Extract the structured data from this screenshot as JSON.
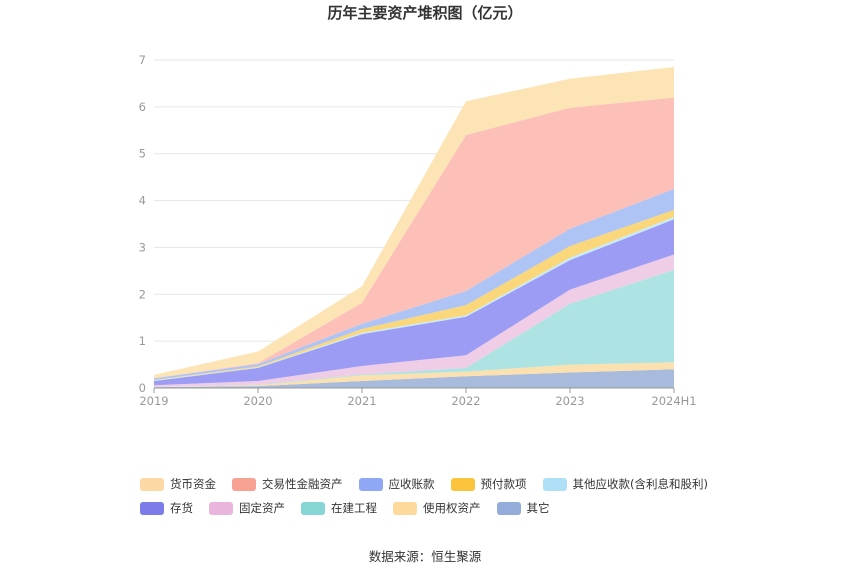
{
  "chart_data": {
    "type": "area",
    "stacked": true,
    "title": "历年主要资产堆积图（亿元）",
    "categories": [
      "2019",
      "2020",
      "2021",
      "2022",
      "2023",
      "2024H1"
    ],
    "ylim": [
      0,
      7
    ],
    "yticks": [
      0,
      1,
      2,
      3,
      4,
      5,
      6,
      7
    ],
    "grid": true,
    "legend_position": "bottom",
    "series": [
      {
        "name": "其它",
        "color": "#a9bbdc",
        "values": [
          0.02,
          0.04,
          0.15,
          0.25,
          0.33,
          0.4
        ]
      },
      {
        "name": "使用权资产",
        "color": "#fbe0b0",
        "values": [
          0.0,
          0.02,
          0.12,
          0.1,
          0.17,
          0.15
        ]
      },
      {
        "name": "在建工程",
        "color": "#ade3e2",
        "values": [
          0.0,
          0.01,
          0.02,
          0.08,
          1.3,
          1.97
        ]
      },
      {
        "name": "固定资产",
        "color": "#f0cde6",
        "values": [
          0.04,
          0.08,
          0.18,
          0.27,
          0.3,
          0.33
        ]
      },
      {
        "name": "存货",
        "color": "#9d9cf4",
        "values": [
          0.09,
          0.28,
          0.68,
          0.82,
          0.63,
          0.75
        ]
      },
      {
        "name": "其他应收款(含利息和股利)",
        "color": "#c5ebfb",
        "values": [
          0.01,
          0.01,
          0.03,
          0.03,
          0.05,
          0.05
        ]
      },
      {
        "name": "预付款项",
        "color": "#fbd77c",
        "values": [
          0.01,
          0.02,
          0.08,
          0.22,
          0.25,
          0.15
        ]
      },
      {
        "name": "应收账款",
        "color": "#adc4f5",
        "values": [
          0.04,
          0.05,
          0.11,
          0.3,
          0.37,
          0.45
        ]
      },
      {
        "name": "交易性金融资产",
        "color": "#fcc0b9",
        "values": [
          0.0,
          0.02,
          0.45,
          3.33,
          2.58,
          1.95
        ]
      },
      {
        "name": "货币资金",
        "color": "#fde4b5",
        "values": [
          0.07,
          0.25,
          0.35,
          0.72,
          0.62,
          0.65
        ]
      }
    ]
  },
  "legend": {
    "rows": [
      [
        {
          "label": "货币资金",
          "color": "#fcd9a4"
        },
        {
          "label": "交易性金融资产",
          "color": "#f7a192"
        },
        {
          "label": "应收账款",
          "color": "#8fa8f5"
        },
        {
          "label": "预付款项",
          "color": "#fbc43c"
        },
        {
          "label": "其他应收款(含利息和股利)",
          "color": "#aee0f8"
        }
      ],
      [
        {
          "label": "存货",
          "color": "#7b7be9"
        },
        {
          "label": "固定资产",
          "color": "#e9b5dd"
        },
        {
          "label": "在建工程",
          "color": "#86d6d5"
        },
        {
          "label": "使用权资产",
          "color": "#fdd99c"
        },
        {
          "label": "其它",
          "color": "#92add9"
        }
      ]
    ]
  },
  "source": "数据来源：恒生聚源"
}
